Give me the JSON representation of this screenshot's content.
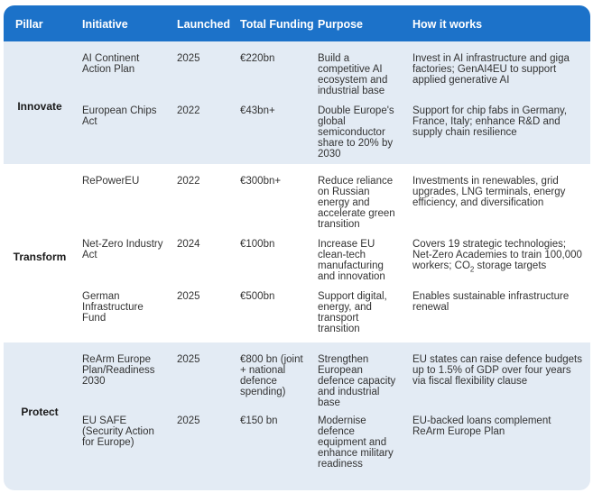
{
  "header": {
    "pillar": "Pillar",
    "initiative": "Initiative",
    "launched": "Launched",
    "funding": "Total Funding",
    "purpose": "Purpose",
    "how": "How it works"
  },
  "colors": {
    "header_bg": "#1c72c9",
    "band_bg": "#e3ebf4"
  },
  "groups": [
    {
      "pillar": "Innovate",
      "rows": [
        {
          "initiative": "AI Continent Action Plan",
          "launched": "2025",
          "funding": "€220bn",
          "purpose": "Build a competitive AI ecosystem and industrial base",
          "how": "Invest in AI infrastructure and giga factories; GenAI4EU to support applied generative AI"
        },
        {
          "initiative": "European Chips Act",
          "launched": "2022",
          "funding": "€43bn+",
          "purpose": "Double Europe's global semiconductor share to 20% by 2030",
          "how": "Support for chip fabs in Germany, France, Italy; enhance R&D and supply chain resilience"
        }
      ]
    },
    {
      "pillar": "Transform",
      "rows": [
        {
          "initiative": "RePowerEU",
          "launched": "2022",
          "funding": "€300bn+",
          "purpose": "Reduce reliance on Russian energy and accelerate green transition",
          "how": "Investments in renewables, grid upgrades, LNG terminals, energy efficiency, and diversification"
        },
        {
          "initiative": "Net-Zero Industry Act",
          "launched": "2024",
          "funding": "€100bn",
          "purpose": "Increase EU clean-tech manufacturing and innovation",
          "how_main": "Covers 19 strategic technologies; Net-Zero Academies to train 100,000 workers; CO",
          "how_sub": "2",
          "how_tail": " storage targets"
        },
        {
          "initiative": "German Infrastructure Fund",
          "launched": "2025",
          "funding": "€500bn",
          "purpose": "Support digital, energy, and transport transition",
          "how": "Enables sustainable infrastructure renewal"
        }
      ]
    },
    {
      "pillar": "Protect",
      "rows": [
        {
          "initiative": "ReArm Europe Plan/Readiness 2030",
          "launched": "2025",
          "funding": "€800 bn (joint + national defence spending)",
          "purpose": "Strengthen European defence capacity and industrial base",
          "how": "EU states can raise defence budgets up to 1.5% of GDP over four years via fiscal flexibility clause"
        },
        {
          "initiative": "EU SAFE (Security Action for Europe)",
          "launched": "2025",
          "funding": "€150 bn",
          "purpose": "Modernise defence equipment and enhance military readiness",
          "how": "EU-backed loans complement ReArm Europe Plan"
        }
      ]
    }
  ]
}
